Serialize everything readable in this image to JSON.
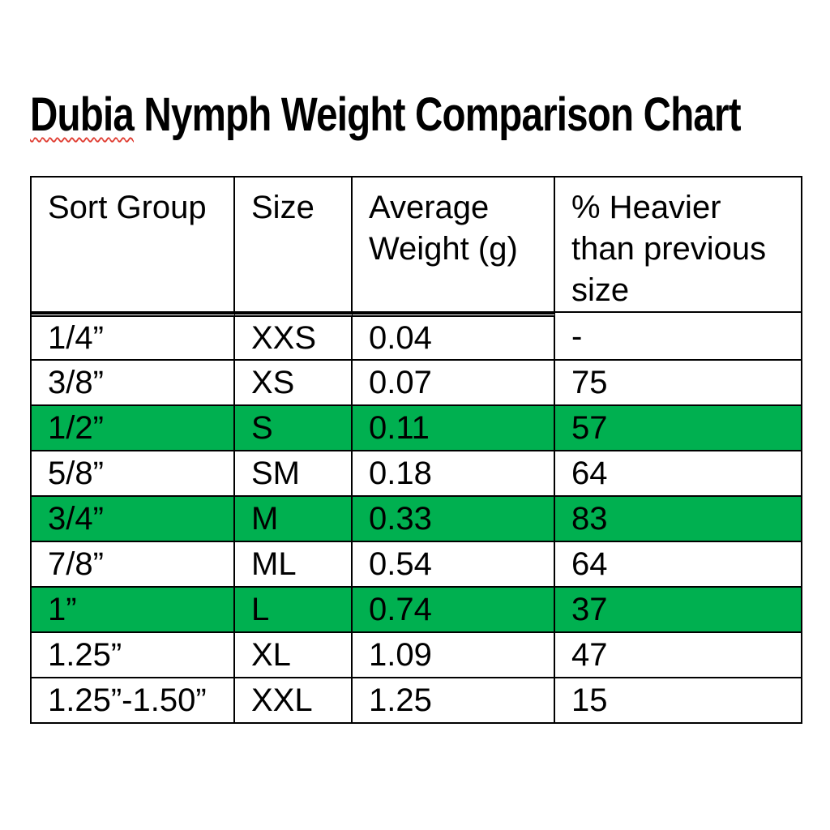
{
  "header": {
    "title_word_underlined": "Dubia",
    "title_rest": " Nymph Weight Comparison Chart"
  },
  "colors": {
    "highlight_green": "#00B050",
    "squiggle_red": "#E03E33",
    "border_black": "#000000",
    "background": "#FFFFFF"
  },
  "chart_data": {
    "type": "table",
    "title": "Dubia Nymph Weight Comparison Chart",
    "columns": [
      "Sort Group",
      "Size",
      "Average Weight (g)",
      "% Heavier than previous size"
    ],
    "header_lines": [
      [
        "Sort Group"
      ],
      [
        "Size"
      ],
      [
        "Average",
        "Weight (g)"
      ],
      [
        "% Heavier",
        "than previous",
        "size"
      ]
    ],
    "rows": [
      {
        "cells": [
          "1/4”",
          "XXS",
          "0.04",
          "-"
        ],
        "highlighted": false
      },
      {
        "cells": [
          "3/8”",
          "XS",
          "0.07",
          "75"
        ],
        "highlighted": false
      },
      {
        "cells": [
          "1/2”",
          "S",
          "0.11",
          "57"
        ],
        "highlighted": true
      },
      {
        "cells": [
          "5/8”",
          "SM",
          "0.18",
          "64"
        ],
        "highlighted": false
      },
      {
        "cells": [
          "3/4”",
          "M",
          "0.33",
          "83"
        ],
        "highlighted": true
      },
      {
        "cells": [
          "7/8”",
          "ML",
          "0.54",
          "64"
        ],
        "highlighted": false
      },
      {
        "cells": [
          "1”",
          "L",
          "0.74",
          "37"
        ],
        "highlighted": true
      },
      {
        "cells": [
          "1.25”",
          "XL",
          "1.09",
          "47"
        ],
        "highlighted": false
      },
      {
        "cells": [
          "1.25”-1.50”",
          "XXL",
          "1.25",
          "15"
        ],
        "highlighted": false
      }
    ],
    "highlighted_row_indices": [
      2,
      4,
      6
    ]
  }
}
